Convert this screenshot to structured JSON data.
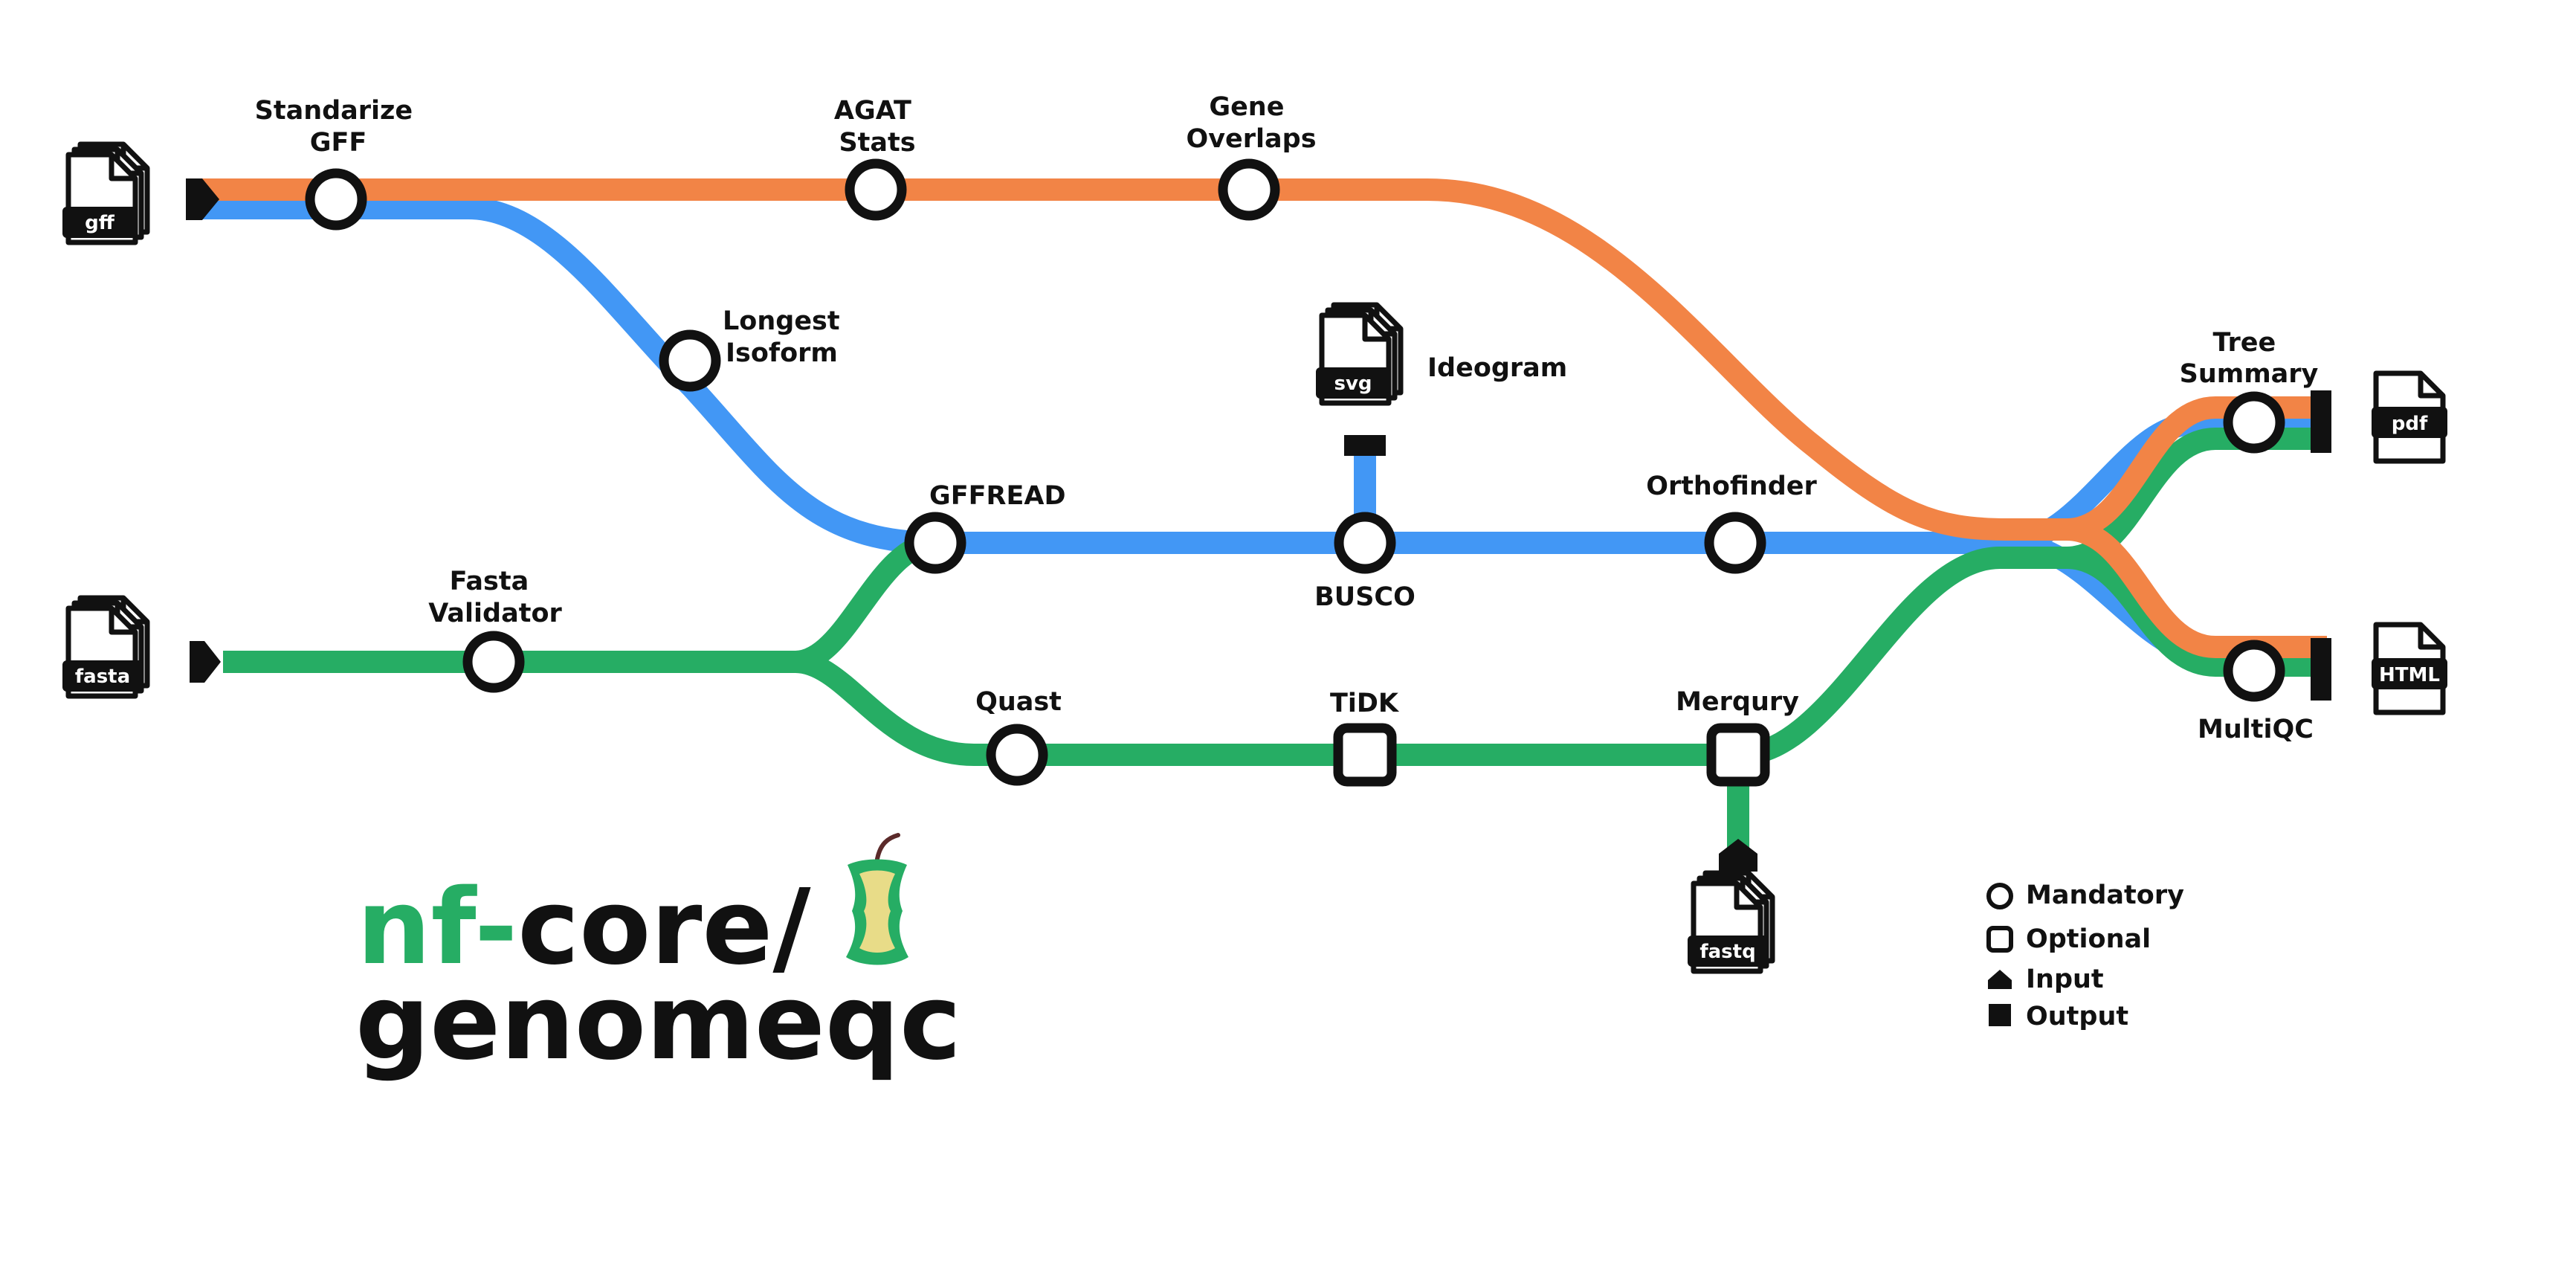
{
  "colors": {
    "orange": "#f28446",
    "blue": "#4297f5",
    "green": "#26ad64",
    "black": "#111111",
    "white": "#ffffff",
    "apple_core": "#e8dc88"
  },
  "inputs": {
    "gff": "gff",
    "fasta": "fasta",
    "fastq": "fastq"
  },
  "outputs": {
    "svg": "svg",
    "pdf": "pdf",
    "html": "HTML"
  },
  "steps": {
    "standardize_gff": [
      "Standarize",
      "GFF"
    ],
    "agat_stats": [
      "AGAT",
      "Stats"
    ],
    "gene_overlaps": [
      "Gene",
      "Overlaps"
    ],
    "longest_isoform": [
      "Longest",
      "Isoform"
    ],
    "ideogram": "Ideogram",
    "gffread": "GFFREAD",
    "busco": "BUSCO",
    "orthofinder": "Orthofinder",
    "fasta_validator": [
      "Fasta",
      "Validator"
    ],
    "quast": "Quast",
    "tidk": "TiDK",
    "merqury": "Merqury",
    "tree_summary": [
      "Tree",
      "Summary"
    ],
    "multiqc": "MultiQC"
  },
  "legend": {
    "mandatory": "Mandatory",
    "optional": "Optional",
    "input": "Input",
    "output": "Output"
  },
  "logo": {
    "nf": "nf",
    "dash": "-",
    "core": "core/",
    "name": "genomeqc"
  }
}
